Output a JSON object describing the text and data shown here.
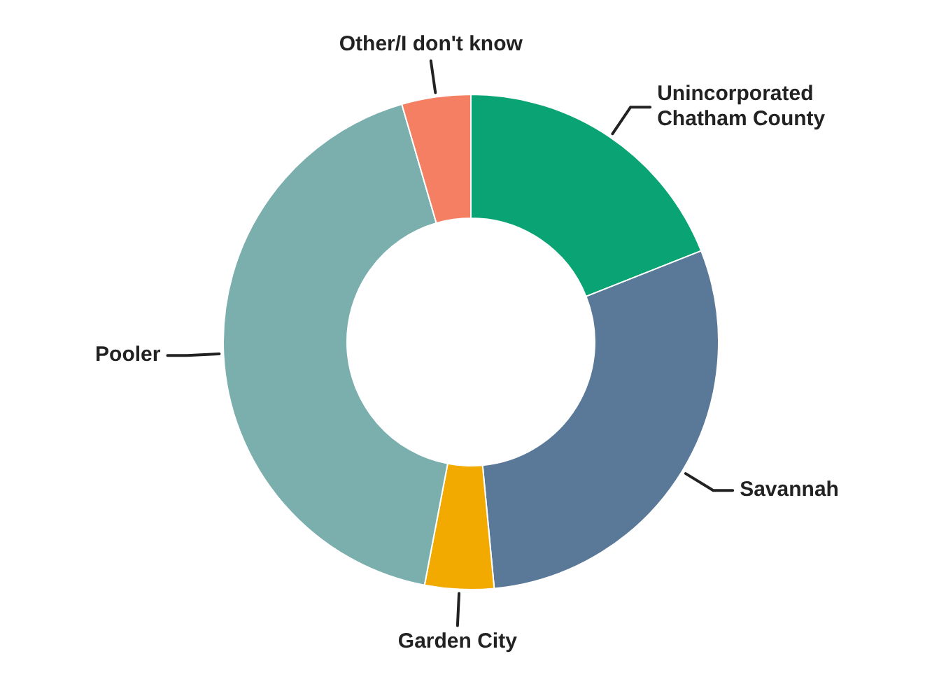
{
  "chart_data": {
    "type": "donut",
    "categories": [
      "Unincorporated Chatham County",
      "Savannah",
      "Garden City",
      "Pooler",
      "Other/I don't know"
    ],
    "values": [
      19,
      29.5,
      4.5,
      42.5,
      4.5
    ],
    "colors": [
      "#0aa374",
      "#5a7898",
      "#f2a900",
      "#7aafad",
      "#f47f63"
    ],
    "legend": false
  }
}
